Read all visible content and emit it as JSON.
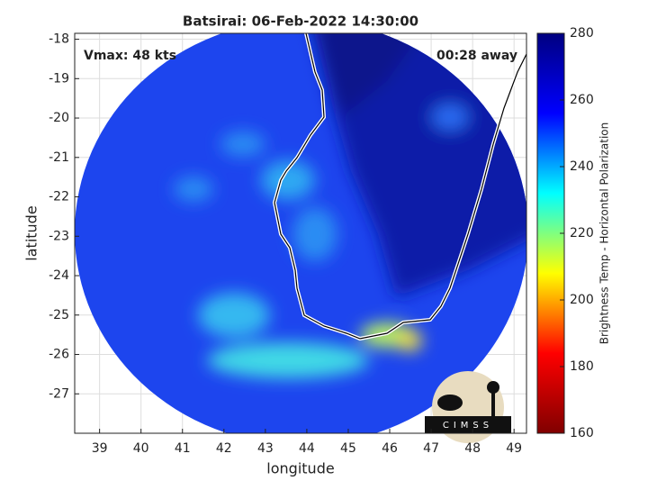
{
  "chart_data": {
    "type": "image",
    "title": "Batsirai: 06-Feb-2022 14:30:00",
    "annotations": [
      "Vmax: 48 kts",
      "00:28 away"
    ],
    "x_label": "longitude",
    "y_label": "latitude",
    "xlim": [
      38.4,
      49.3
    ],
    "xticks": [
      39,
      40,
      41,
      42,
      43,
      44,
      45,
      46,
      47,
      48,
      49
    ],
    "ylim": [
      -28,
      -17.85
    ],
    "yticks": [
      -18,
      -19,
      -20,
      -21,
      -22,
      -23,
      -24,
      -25,
      -26,
      -27
    ],
    "grid": true,
    "colorbar": {
      "label": "Brightness Temp - Horizontal Polarization",
      "clim": [
        160,
        280
      ],
      "ticks": [
        160,
        180,
        200,
        220,
        240,
        260,
        280
      ],
      "colormap": [
        "#800000",
        "#ff0000",
        "#ffff00",
        "#00ffff",
        "#0000ff",
        "#000080"
      ]
    },
    "logo": "CIMSS"
  }
}
